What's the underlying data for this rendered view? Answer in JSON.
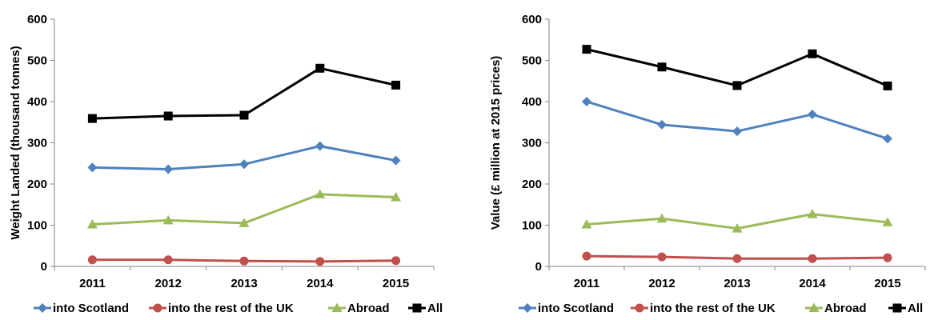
{
  "chart_data": [
    {
      "type": "line",
      "title": "",
      "xlabel": "",
      "ylabel": "Weight Landed (thousand tonnes)",
      "ylim": [
        0,
        600
      ],
      "yticks": [
        0,
        100,
        200,
        300,
        400,
        500,
        600
      ],
      "grid": false,
      "legend_position": "bottom",
      "categories": [
        "2011",
        "2012",
        "2013",
        "2014",
        "2015"
      ],
      "series": [
        {
          "name": "into Scotland",
          "color": "#4F81BD",
          "marker": "diamond",
          "values": [
            240,
            236,
            248,
            292,
            257
          ]
        },
        {
          "name": "into the rest of the UK",
          "color": "#C0504D",
          "marker": "circle",
          "values": [
            16,
            16,
            13,
            12,
            14
          ]
        },
        {
          "name": "Abroad",
          "color": "#9BBB59",
          "marker": "triangle",
          "values": [
            102,
            112,
            105,
            175,
            168
          ]
        },
        {
          "name": "All",
          "color": "#000000",
          "marker": "square",
          "values": [
            359,
            365,
            367,
            481,
            440
          ]
        }
      ]
    },
    {
      "type": "line",
      "title": "",
      "xlabel": "",
      "ylabel": "Value (£ million at 2015 prices)",
      "ylim": [
        0,
        600
      ],
      "yticks": [
        0,
        100,
        200,
        300,
        400,
        500,
        600
      ],
      "grid": false,
      "legend_position": "bottom",
      "categories": [
        "2011",
        "2012",
        "2013",
        "2014",
        "2015"
      ],
      "series": [
        {
          "name": "into Scotland",
          "color": "#4F81BD",
          "marker": "diamond",
          "values": [
            400,
            344,
            328,
            369,
            310
          ]
        },
        {
          "name": "into the rest of the UK",
          "color": "#C0504D",
          "marker": "circle",
          "values": [
            25,
            23,
            19,
            19,
            21
          ]
        },
        {
          "name": "Abroad",
          "color": "#9BBB59",
          "marker": "triangle",
          "values": [
            102,
            116,
            92,
            127,
            107
          ]
        },
        {
          "name": "All",
          "color": "#000000",
          "marker": "square",
          "values": [
            527,
            484,
            439,
            516,
            438
          ]
        }
      ]
    }
  ]
}
